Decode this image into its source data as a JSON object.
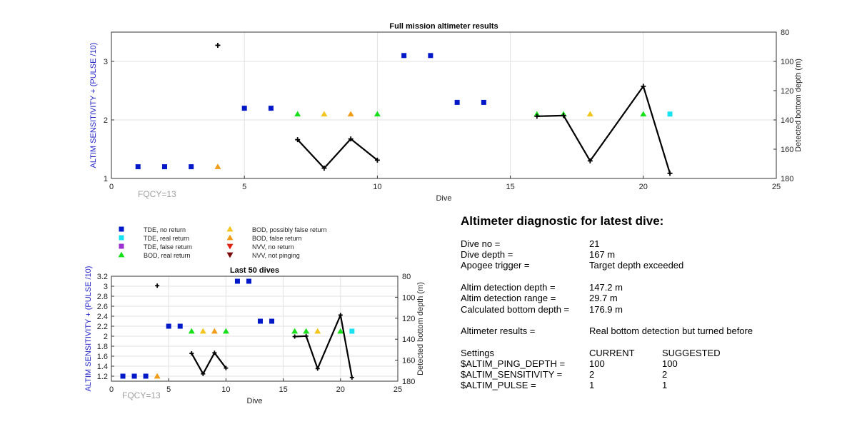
{
  "chart_data": [
    {
      "type": "scatter",
      "title": "Full mission altimeter results",
      "xlabel": "Dive",
      "ylabel": "ALTIM SENSITIVITY + (PULSE /10)",
      "y2label": "Detected bottom depth (m)",
      "xlim": [
        0,
        25
      ],
      "ylim": [
        1,
        3.5
      ],
      "y2lim": [
        80,
        180
      ],
      "y2_reversed": true,
      "xticks": [
        "0",
        "5",
        "10",
        "15",
        "20",
        "25"
      ],
      "yticks": [
        "1",
        "2",
        "3"
      ],
      "y2ticks": [
        "80",
        "100",
        "120",
        "140",
        "160",
        "180"
      ],
      "annotation": "FQCY=13",
      "grid": true,
      "series": [
        {
          "name": "TDE, no return",
          "marker": "square",
          "color": "#0018c8",
          "points": [
            [
              1,
              1.2
            ],
            [
              2,
              1.2
            ],
            [
              3,
              1.2
            ],
            [
              5,
              2.2
            ],
            [
              6,
              2.2
            ],
            [
              11,
              3.1
            ],
            [
              12,
              3.1
            ],
            [
              13,
              2.3
            ],
            [
              14,
              2.3
            ]
          ]
        },
        {
          "name": "TDE, real return",
          "marker": "square",
          "color": "#19e3f0",
          "points": [
            [
              21,
              2.1
            ]
          ]
        },
        {
          "name": "BOD, real return",
          "marker": "triangle-up",
          "color": "#17e01a",
          "points": [
            [
              7,
              2.1
            ],
            [
              10,
              2.1
            ],
            [
              16,
              2.1
            ],
            [
              17,
              2.1
            ],
            [
              20,
              2.1
            ]
          ]
        },
        {
          "name": "BOD, possibly false return",
          "marker": "triangle-up",
          "color": "#f2c51c",
          "points": [
            [
              8,
              2.1
            ],
            [
              18,
              2.1
            ]
          ]
        },
        {
          "name": "BOD, false return",
          "marker": "triangle-up",
          "color": "#f09e1a",
          "points": [
            [
              4,
              1.2
            ],
            [
              9,
              2.1
            ]
          ]
        },
        {
          "name": "Detected bottom depth",
          "marker": "plus",
          "color": "#000000",
          "axis": "right",
          "isolated_points": [
            [
              4,
              89
            ]
          ],
          "segments": [
            [
              [
                7,
                153.5
              ],
              [
                8,
                173
              ],
              [
                9,
                153
              ],
              [
                10,
                167.5
              ]
            ],
            [
              [
                16,
                137.5
              ],
              [
                17,
                137
              ],
              [
                18,
                168
              ],
              [
                20,
                117
              ],
              [
                21,
                176.5
              ]
            ]
          ]
        }
      ]
    },
    {
      "type": "scatter",
      "title": "Last 50 dives",
      "xlabel": "Dive",
      "ylabel": "ALTIM SENSITIVITY + (PULSE /10)",
      "y2label": "Detected bottom depth (m)",
      "xlim": [
        0,
        25
      ],
      "ylim": [
        1.1,
        3.2
      ],
      "y2lim": [
        80,
        180
      ],
      "y2_reversed": true,
      "xticks": [
        "0",
        "5",
        "10",
        "15",
        "20",
        "25"
      ],
      "yticks": [
        "1.2",
        "1.4",
        "1.6",
        "1.8",
        "2",
        "2.2",
        "2.4",
        "2.6",
        "2.8",
        "3",
        "3.2"
      ],
      "y2ticks": [
        "80",
        "100",
        "120",
        "140",
        "160",
        "180"
      ],
      "annotation": "FQCY=13",
      "grid": true,
      "series": [
        {
          "name": "TDE, no return",
          "marker": "square",
          "color": "#0018c8",
          "points": [
            [
              1,
              1.2
            ],
            [
              2,
              1.2
            ],
            [
              3,
              1.2
            ],
            [
              5,
              2.2
            ],
            [
              6,
              2.2
            ],
            [
              11,
              3.1
            ],
            [
              12,
              3.1
            ],
            [
              13,
              2.3
            ],
            [
              14,
              2.3
            ]
          ]
        },
        {
          "name": "TDE, real return",
          "marker": "square",
          "color": "#19e3f0",
          "points": [
            [
              21,
              2.1
            ]
          ]
        },
        {
          "name": "BOD, real return",
          "marker": "triangle-up",
          "color": "#17e01a",
          "points": [
            [
              7,
              2.1
            ],
            [
              10,
              2.1
            ],
            [
              16,
              2.1
            ],
            [
              17,
              2.1
            ],
            [
              20,
              2.1
            ]
          ]
        },
        {
          "name": "BOD, possibly false return",
          "marker": "triangle-up",
          "color": "#f2c51c",
          "points": [
            [
              8,
              2.1
            ],
            [
              18,
              2.1
            ]
          ]
        },
        {
          "name": "BOD, false return",
          "marker": "triangle-up",
          "color": "#f09e1a",
          "points": [
            [
              4,
              1.2
            ],
            [
              9,
              2.1
            ]
          ]
        },
        {
          "name": "Detected bottom depth",
          "marker": "plus",
          "color": "#000000",
          "axis": "right",
          "isolated_points": [
            [
              4,
              89
            ]
          ],
          "segments": [
            [
              [
                7,
                153.5
              ],
              [
                8,
                173
              ],
              [
                9,
                153
              ],
              [
                10,
                167.5
              ]
            ],
            [
              [
                16,
                137.5
              ],
              [
                17,
                137
              ],
              [
                18,
                168
              ],
              [
                20,
                117
              ],
              [
                21,
                176.5
              ]
            ]
          ]
        }
      ]
    }
  ],
  "legend": {
    "items": [
      {
        "label": "TDE, no return",
        "marker": "square",
        "color": "#0018c8"
      },
      {
        "label": "TDE, real return",
        "marker": "square",
        "color": "#19e3f0"
      },
      {
        "label": "TDE, false return",
        "marker": "square",
        "color": "#9b32d0"
      },
      {
        "label": "BOD, real return",
        "marker": "triangle-up",
        "color": "#17e01a"
      },
      {
        "label": "BOD, possibly false return",
        "marker": "triangle-up",
        "color": "#f2c51c"
      },
      {
        "label": "BOD, false return",
        "marker": "triangle-up",
        "color": "#f09e1a"
      },
      {
        "label": "NVV, no return",
        "marker": "triangle-down",
        "color": "#e02010"
      },
      {
        "label": "NVV, not pinging",
        "marker": "triangle-down",
        "color": "#7a0a0a"
      }
    ]
  },
  "diagnostic": {
    "title": "Altimeter diagnostic for latest dive:",
    "dive_no_label": "Dive no =",
    "dive_no": "21",
    "dive_depth_label": "Dive depth =",
    "dive_depth": "167 m",
    "apogee_label": "Apogee trigger =",
    "apogee": "Target depth exceeded",
    "det_depth_label": "Altim detection depth =",
    "det_depth": "147.2 m",
    "det_range_label": "Altim detection range =",
    "det_range": "29.7 m",
    "calc_depth_label": "Calculated bottom depth =",
    "calc_depth": "176.9 m",
    "results_label": "Altimeter results =",
    "results": "Real bottom detection but turned before",
    "settings_label": "Settings",
    "current_label": "CURRENT",
    "suggested_label": "SUGGESTED",
    "settings": [
      {
        "name": "$ALTIM_PING_DEPTH =",
        "current": "100",
        "suggested": "100"
      },
      {
        "name": "$ALTIM_SENSITIVITY =",
        "current": "2",
        "suggested": "2"
      },
      {
        "name": "$ALTIM_PULSE =",
        "current": "1",
        "suggested": "1"
      }
    ]
  }
}
